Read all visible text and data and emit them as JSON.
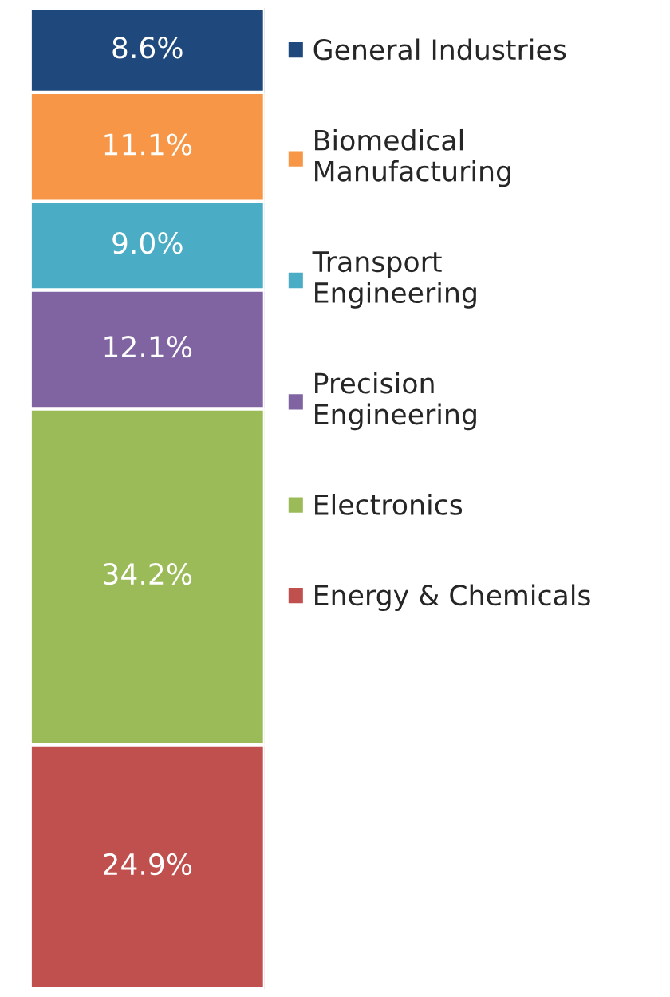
{
  "chart_data": {
    "type": "bar",
    "stacked": true,
    "categories": [
      null
    ],
    "legend": "right",
    "series": [
      {
        "name": "Energy & Chemicals",
        "color": "#c0504d",
        "values": [
          24.9
        ],
        "value_labels": [
          "24.9%"
        ]
      },
      {
        "name": "Electronics",
        "color": "#9bbb59",
        "values": [
          34.2
        ],
        "value_labels": [
          "34.2%"
        ]
      },
      {
        "name": "Precision Engineering",
        "color": "#8064a2",
        "values": [
          12.1
        ],
        "value_labels": [
          "12.1%"
        ]
      },
      {
        "name": "Transport Engineering",
        "color": "#4bacc6",
        "values": [
          9.0
        ],
        "value_labels": [
          "9.0%"
        ]
      },
      {
        "name": "Biomedical Manufacturing",
        "color": "#f79646",
        "values": [
          11.1
        ],
        "value_labels": [
          "11.1%"
        ]
      },
      {
        "name": "General Industries",
        "color": "#1f497d",
        "values": [
          8.6
        ],
        "value_labels": [
          "8.6%"
        ]
      }
    ]
  }
}
